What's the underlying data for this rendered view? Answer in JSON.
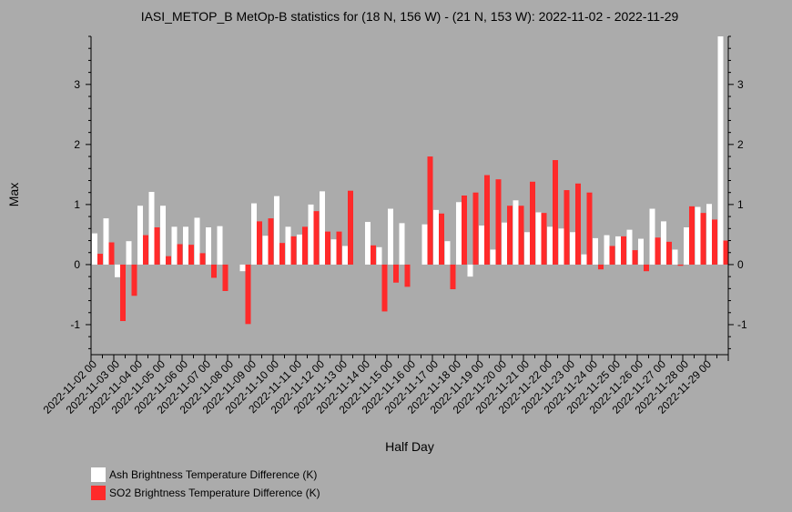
{
  "chart_data": {
    "type": "bar",
    "title": "IASI_METOP_B MetOp-B statistics for (18 N, 156 W) - (21 N, 153 W): 2022-11-02 - 2022-11-29",
    "xlabel": "Half Day",
    "ylabel": "Max",
    "ylim": [
      -1.5,
      3.8
    ],
    "yticks": [
      -1,
      0,
      1,
      2,
      3
    ],
    "x_tick_labels": [
      "2022-11-02 00",
      "2022-11-03 00",
      "2022-11-04 00",
      "2022-11-05 00",
      "2022-11-06 00",
      "2022-11-07 00",
      "2022-11-08 00",
      "2022-11-09 00",
      "2022-11-10 00",
      "2022-11-11 00",
      "2022-11-12 00",
      "2022-11-13 00",
      "2022-11-14 00",
      "2022-11-15 00",
      "2022-11-16 00",
      "2022-11-17 00",
      "2022-11-18 00",
      "2022-11-19 00",
      "2022-11-20 00",
      "2022-11-21 00",
      "2022-11-22 00",
      "2022-11-23 00",
      "2022-11-24 00",
      "2022-11-25 00",
      "2022-11-26 00",
      "2022-11-27 00",
      "2022-11-28 00",
      "2022-11-29 00"
    ],
    "categories": [
      "2022-11-02 00",
      "2022-11-02 12",
      "2022-11-03 00",
      "2022-11-03 12",
      "2022-11-04 00",
      "2022-11-04 12",
      "2022-11-05 00",
      "2022-11-05 12",
      "2022-11-06 00",
      "2022-11-06 12",
      "2022-11-07 00",
      "2022-11-07 12",
      "2022-11-08 00",
      "2022-11-08 12",
      "2022-11-09 00",
      "2022-11-09 12",
      "2022-11-10 00",
      "2022-11-10 12",
      "2022-11-11 00",
      "2022-11-11 12",
      "2022-11-12 00",
      "2022-11-12 12",
      "2022-11-13 00",
      "2022-11-13 12",
      "2022-11-14 00",
      "2022-11-14 12",
      "2022-11-15 00",
      "2022-11-15 12",
      "2022-11-16 00",
      "2022-11-16 12",
      "2022-11-17 00",
      "2022-11-17 12",
      "2022-11-18 00",
      "2022-11-18 12",
      "2022-11-19 00",
      "2022-11-19 12",
      "2022-11-20 00",
      "2022-11-20 12",
      "2022-11-21 00",
      "2022-11-21 12",
      "2022-11-22 00",
      "2022-11-22 12",
      "2022-11-23 00",
      "2022-11-23 12",
      "2022-11-24 00",
      "2022-11-24 12",
      "2022-11-25 00",
      "2022-11-25 12",
      "2022-11-26 00",
      "2022-11-26 12",
      "2022-11-27 00",
      "2022-11-27 12",
      "2022-11-28 00",
      "2022-11-28 12",
      "2022-11-29 00",
      "2022-11-29 12"
    ],
    "series": [
      {
        "name": "Ash Brightness Temperature Difference (K)",
        "color": "#ffffff",
        "values": [
          0.52,
          0.77,
          -0.21,
          0.39,
          0.98,
          1.21,
          0.98,
          0.63,
          0.63,
          0.78,
          0.62,
          0.64,
          null,
          -0.11,
          1.02,
          0.48,
          1.14,
          0.63,
          0.5,
          1.0,
          1.22,
          0.42,
          0.31,
          null,
          0.71,
          0.29,
          0.93,
          0.69,
          null,
          0.67,
          0.91,
          0.39,
          1.04,
          -0.2,
          0.65,
          0.25,
          0.7,
          1.07,
          0.54,
          0.87,
          0.63,
          0.6,
          0.54,
          0.17,
          0.44,
          0.49,
          0.47,
          0.58,
          0.43,
          0.93,
          0.72,
          0.25,
          0.62,
          0.96,
          1.01,
          3.8
        ]
      },
      {
        "name": "SO2 Brightness Temperature Difference (K)",
        "color": "#ff2a2a",
        "values": [
          0.18,
          0.37,
          -0.94,
          -0.52,
          0.49,
          0.62,
          0.14,
          0.34,
          0.33,
          0.19,
          -0.22,
          -0.44,
          null,
          -0.99,
          0.72,
          0.77,
          0.36,
          0.47,
          0.63,
          0.89,
          0.55,
          0.55,
          1.23,
          null,
          0.32,
          -0.78,
          -0.3,
          -0.37,
          null,
          1.8,
          0.85,
          -0.41,
          1.15,
          1.2,
          1.49,
          1.42,
          0.98,
          0.98,
          1.38,
          0.86,
          1.74,
          1.24,
          1.35,
          1.2,
          -0.08,
          0.31,
          0.47,
          0.24,
          -0.11,
          0.45,
          0.38,
          -0.02,
          0.97,
          0.86,
          0.75,
          0.4
        ]
      }
    ],
    "legend_position": "bottom-left",
    "grid": false
  }
}
